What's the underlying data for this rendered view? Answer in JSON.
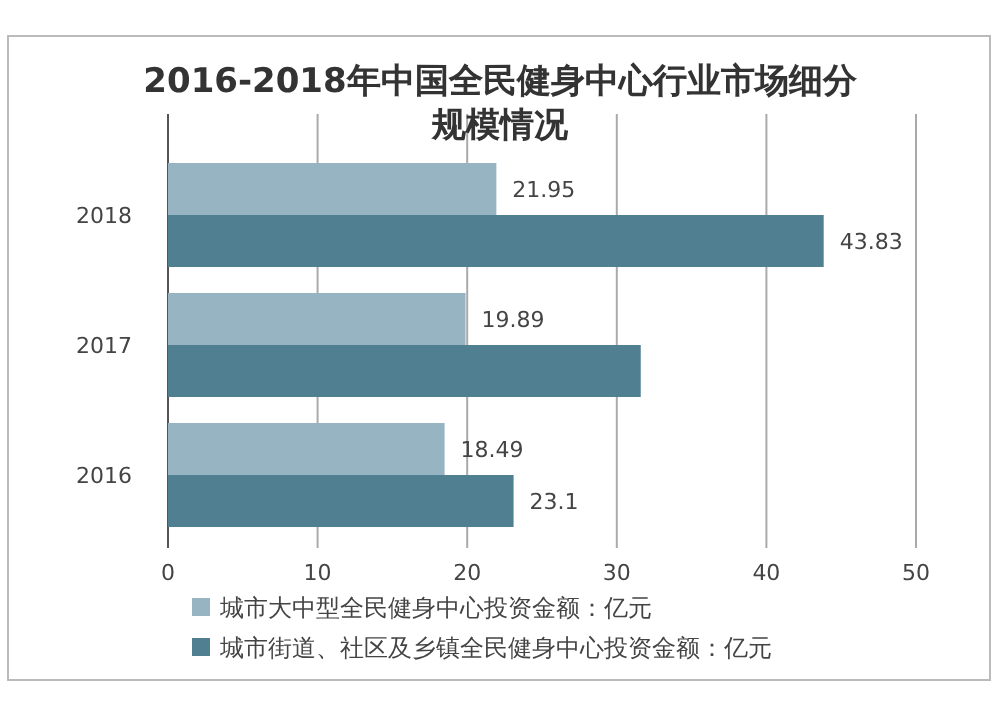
{
  "chart_data": {
    "type": "bar",
    "orientation": "horizontal",
    "title": "2016-2018年中国全民健身中心行业市场细分规模情况",
    "categories": [
      "2018",
      "2017",
      "2016"
    ],
    "series": [
      {
        "name": "城市大中型全民健身中心投资金额：亿元",
        "color": "#97b4c2",
        "values": [
          21.95,
          19.89,
          18.49
        ],
        "value_labels": [
          "21.95",
          "19.89",
          "18.49"
        ]
      },
      {
        "name": "城市街道、社区及乡镇全民健身中心投资金额：亿元",
        "color": "#4f7f91",
        "values": [
          43.83,
          31.6,
          23.1
        ],
        "value_labels": [
          "43.83",
          null,
          "23.1"
        ]
      }
    ],
    "xlim": [
      0,
      50
    ],
    "xticks": [
      0,
      10,
      20,
      30,
      40,
      50
    ],
    "grid": "x",
    "legend": "bottom"
  }
}
